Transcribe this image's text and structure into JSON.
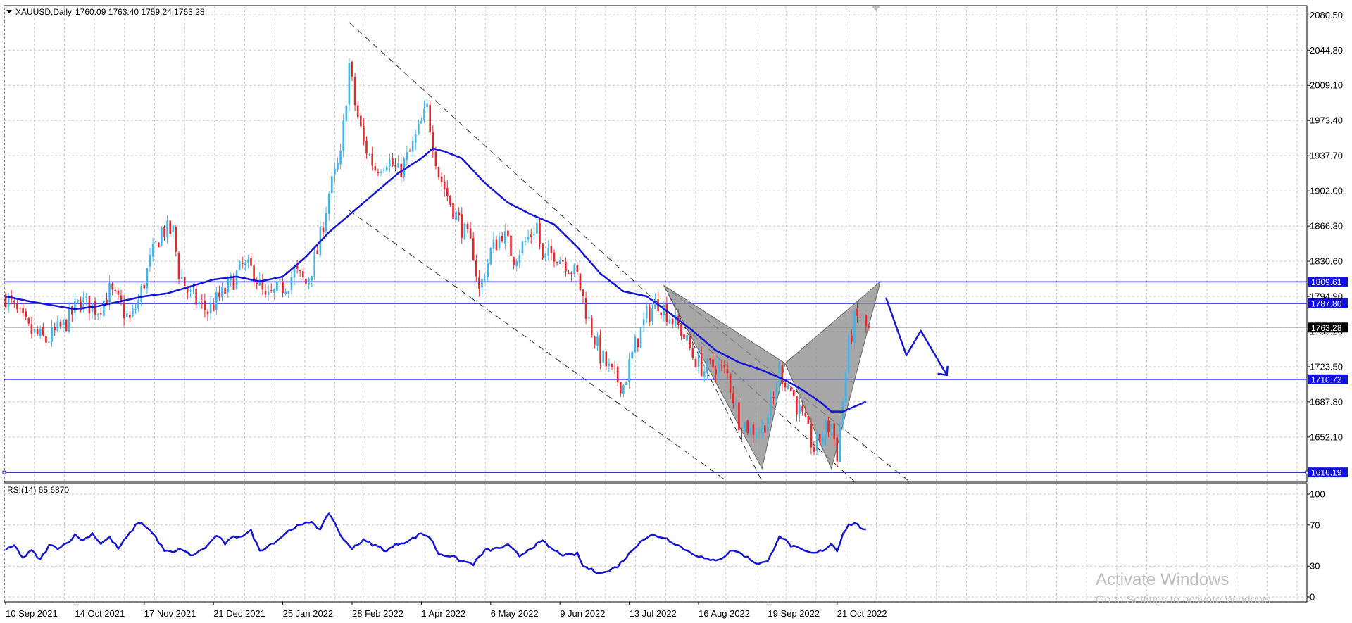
{
  "header": {
    "symbol_label": "XAUUSD,Daily",
    "ohlc": "1760.09 1763.40 1759.24 1763.28"
  },
  "rsi_header": {
    "label": "RSI(14) 65.6870"
  },
  "watermark": {
    "title": "Activate Windows",
    "subtitle": "Go to Settings to activate Windows."
  },
  "colors": {
    "bull": "#40b4ec",
    "bear": "#e8262a",
    "ma": "#1515d8",
    "level": "#1010e0",
    "grid": "#c8c8c8",
    "channel": "#333333",
    "harmonic": "#8a8a8a",
    "rsi": "#1515d8"
  },
  "chart_data": [
    {
      "type": "candlestick",
      "symbol": "XAUUSD",
      "timeframe": "Daily",
      "ylim": [
        1607,
        2090
      ],
      "y_ticks": [
        2080.5,
        2044.8,
        2009.1,
        1973.4,
        1937.7,
        1902.0,
        1866.3,
        1830.6,
        1794.9,
        1759.2,
        1723.5,
        1687.8,
        1652.1
      ],
      "y_tick_labels": [
        "2080.50",
        "2044.80",
        "2009.10",
        "1973.40",
        "1937.70",
        "1902.00",
        "1866.30",
        "1830.60",
        "1794.90",
        "1759.20",
        "1723.50",
        "1687.80",
        "1652.10"
      ],
      "x_labels": [
        "10 Sep 2021",
        "14 Oct 2021",
        "17 Nov 2021",
        "21 Dec 2021",
        "25 Jan 2022",
        "28 Feb 2022",
        "1 Apr 2022",
        "6 May 2022",
        "9 Jun 2022",
        "13 Jul 2022",
        "16 Aug 2022",
        "19 Sep 2022",
        "21 Oct 2022"
      ],
      "x_label_bars": [
        0,
        24,
        48,
        72,
        96,
        120,
        144,
        168,
        192,
        216,
        240,
        264,
        288
      ],
      "total_bars": 300,
      "price_path": [
        [
          0,
          1795
        ],
        [
          8,
          1760
        ],
        [
          14,
          1750
        ],
        [
          20,
          1765
        ],
        [
          26,
          1790
        ],
        [
          32,
          1782
        ],
        [
          36,
          1800
        ],
        [
          40,
          1784
        ],
        [
          43,
          1770
        ],
        [
          46,
          1790
        ],
        [
          50,
          1830
        ],
        [
          54,
          1862
        ],
        [
          58,
          1860
        ],
        [
          60,
          1820
        ],
        [
          64,
          1795
        ],
        [
          70,
          1780
        ],
        [
          76,
          1800
        ],
        [
          82,
          1825
        ],
        [
          86,
          1820
        ],
        [
          90,
          1790
        ],
        [
          94,
          1800
        ],
        [
          98,
          1810
        ],
        [
          100,
          1820
        ],
        [
          104,
          1808
        ],
        [
          108,
          1840
        ],
        [
          112,
          1900
        ],
        [
          116,
          1935
        ],
        [
          119,
          2030
        ],
        [
          121,
          1990
        ],
        [
          124,
          1950
        ],
        [
          128,
          1925
        ],
        [
          132,
          1935
        ],
        [
          136,
          1920
        ],
        [
          140,
          1940
        ],
        [
          144,
          1970
        ],
        [
          146,
          1985
        ],
        [
          150,
          1920
        ],
        [
          154,
          1890
        ],
        [
          158,
          1865
        ],
        [
          162,
          1840
        ],
        [
          164,
          1800
        ],
        [
          168,
          1840
        ],
        [
          172,
          1860
        ],
        [
          176,
          1835
        ],
        [
          180,
          1850
        ],
        [
          184,
          1868
        ],
        [
          186,
          1830
        ],
        [
          190,
          1840
        ],
        [
          194,
          1830
        ],
        [
          198,
          1815
        ],
        [
          202,
          1770
        ],
        [
          206,
          1735
        ],
        [
          210,
          1715
        ],
        [
          214,
          1705
        ],
        [
          218,
          1745
        ],
        [
          222,
          1775
        ],
        [
          226,
          1790
        ],
        [
          230,
          1775
        ],
        [
          234,
          1760
        ],
        [
          238,
          1735
        ],
        [
          242,
          1720
        ],
        [
          246,
          1725
        ],
        [
          250,
          1715
        ],
        [
          254,
          1670
        ],
        [
          258,
          1660
        ],
        [
          262,
          1660
        ],
        [
          266,
          1690
        ],
        [
          268,
          1720
        ],
        [
          272,
          1700
        ],
        [
          276,
          1670
        ],
        [
          280,
          1640
        ],
        [
          284,
          1660
        ],
        [
          286,
          1665
        ],
        [
          288,
          1635
        ],
        [
          290,
          1690
        ],
        [
          292,
          1745
        ],
        [
          294,
          1770
        ],
        [
          296,
          1775
        ],
        [
          298,
          1763
        ]
      ],
      "ma_path": [
        [
          0,
          1795
        ],
        [
          8,
          1790
        ],
        [
          16,
          1786
        ],
        [
          24,
          1782
        ],
        [
          32,
          1785
        ],
        [
          40,
          1790
        ],
        [
          48,
          1795
        ],
        [
          56,
          1798
        ],
        [
          64,
          1805
        ],
        [
          72,
          1812
        ],
        [
          80,
          1815
        ],
        [
          88,
          1810
        ],
        [
          96,
          1815
        ],
        [
          104,
          1835
        ],
        [
          112,
          1860
        ],
        [
          120,
          1880
        ],
        [
          128,
          1900
        ],
        [
          136,
          1920
        ],
        [
          144,
          1935
        ],
        [
          148,
          1945
        ],
        [
          152,
          1942
        ],
        [
          158,
          1935
        ],
        [
          166,
          1910
        ],
        [
          174,
          1890
        ],
        [
          182,
          1878
        ],
        [
          190,
          1868
        ],
        [
          198,
          1845
        ],
        [
          206,
          1818
        ],
        [
          214,
          1800
        ],
        [
          222,
          1795
        ],
        [
          230,
          1778
        ],
        [
          238,
          1760
        ],
        [
          246,
          1740
        ],
        [
          254,
          1728
        ],
        [
          262,
          1720
        ],
        [
          270,
          1710
        ],
        [
          276,
          1700
        ],
        [
          282,
          1688
        ],
        [
          286,
          1678
        ],
        [
          290,
          1678
        ],
        [
          294,
          1683
        ],
        [
          298,
          1688
        ]
      ],
      "levels": [
        1809.61,
        1787.8,
        1710.72,
        1616.19
      ],
      "level_labels": [
        "1809.61",
        "1787.80",
        "1710.72",
        "1616.19"
      ],
      "current_price": 1763.28,
      "current_price_label": "1763.28",
      "channel_lines": [
        [
          [
            119,
            2073
          ],
          [
            294,
            1607
          ]
        ],
        [
          [
            119,
            1882
          ],
          [
            250,
            1607
          ]
        ],
        [
          [
            228,
            1806
          ],
          [
            262,
            1607
          ]
        ],
        [
          [
            228,
            1806
          ],
          [
            313,
            1607
          ]
        ]
      ],
      "harmonic_points": [
        [
          228,
          1806
        ],
        [
          262,
          1620
        ],
        [
          270,
          1727
        ],
        [
          286,
          1620
        ],
        [
          303,
          1810
        ]
      ],
      "forecast_path": [
        [
          305,
          1793
        ],
        [
          312,
          1735
        ],
        [
          317,
          1760
        ],
        [
          326,
          1715
        ]
      ]
    },
    {
      "type": "line",
      "name": "RSI(14)",
      "value_label": "65.6870",
      "ylim": [
        0,
        100
      ],
      "y_ticks": [
        100,
        70,
        30,
        0
      ],
      "y_tick_labels": [
        "100",
        "70",
        "30",
        "0"
      ],
      "series_path": [
        [
          0,
          45
        ],
        [
          3,
          50
        ],
        [
          6,
          38
        ],
        [
          9,
          45
        ],
        [
          12,
          36
        ],
        [
          15,
          50
        ],
        [
          18,
          48
        ],
        [
          21,
          52
        ],
        [
          24,
          60
        ],
        [
          27,
          55
        ],
        [
          30,
          62
        ],
        [
          33,
          52
        ],
        [
          36,
          58
        ],
        [
          39,
          47
        ],
        [
          42,
          58
        ],
        [
          46,
          73
        ],
        [
          49,
          68
        ],
        [
          52,
          58
        ],
        [
          55,
          45
        ],
        [
          58,
          43
        ],
        [
          61,
          47
        ],
        [
          64,
          40
        ],
        [
          67,
          44
        ],
        [
          70,
          50
        ],
        [
          73,
          60
        ],
        [
          76,
          52
        ],
        [
          79,
          58
        ],
        [
          82,
          60
        ],
        [
          85,
          64
        ],
        [
          88,
          45
        ],
        [
          91,
          50
        ],
        [
          94,
          55
        ],
        [
          97,
          62
        ],
        [
          100,
          68
        ],
        [
          103,
          70
        ],
        [
          106,
          74
        ],
        [
          109,
          65
        ],
        [
          112,
          82
        ],
        [
          114,
          72
        ],
        [
          117,
          55
        ],
        [
          120,
          48
        ],
        [
          124,
          55
        ],
        [
          128,
          50
        ],
        [
          132,
          45
        ],
        [
          136,
          52
        ],
        [
          140,
          55
        ],
        [
          144,
          62
        ],
        [
          147,
          58
        ],
        [
          150,
          42
        ],
        [
          154,
          40
        ],
        [
          158,
          35
        ],
        [
          162,
          32
        ],
        [
          166,
          45
        ],
        [
          170,
          47
        ],
        [
          174,
          50
        ],
        [
          178,
          40
        ],
        [
          182,
          48
        ],
        [
          186,
          54
        ],
        [
          190,
          45
        ],
        [
          194,
          40
        ],
        [
          198,
          42
        ],
        [
          200,
          30
        ],
        [
          204,
          25
        ],
        [
          208,
          24
        ],
        [
          212,
          30
        ],
        [
          216,
          42
        ],
        [
          220,
          55
        ],
        [
          224,
          60
        ],
        [
          228,
          58
        ],
        [
          232,
          52
        ],
        [
          236,
          45
        ],
        [
          240,
          40
        ],
        [
          244,
          35
        ],
        [
          248,
          38
        ],
        [
          252,
          46
        ],
        [
          256,
          40
        ],
        [
          260,
          33
        ],
        [
          264,
          34
        ],
        [
          268,
          60
        ],
        [
          272,
          50
        ],
        [
          276,
          45
        ],
        [
          280,
          42
        ],
        [
          284,
          47
        ],
        [
          286,
          52
        ],
        [
          288,
          45
        ],
        [
          290,
          62
        ],
        [
          292,
          70
        ],
        [
          294,
          72
        ],
        [
          296,
          68
        ],
        [
          298,
          65.7
        ]
      ]
    }
  ]
}
